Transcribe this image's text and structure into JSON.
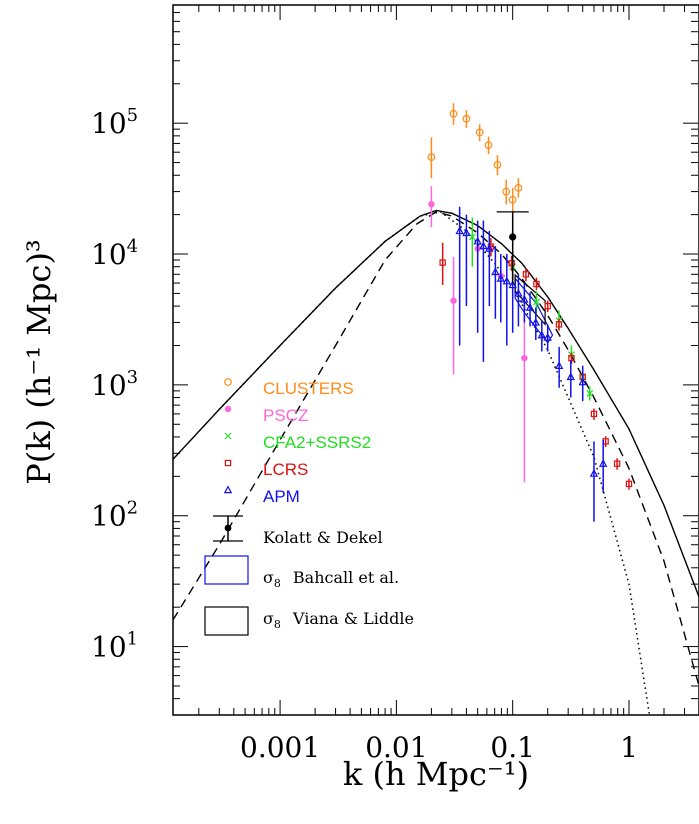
{
  "chart_data": {
    "type": "scatter",
    "xlabel": "k (h Mpc⁻¹)",
    "ylabel": "P(k) (h⁻¹ Mpc)³",
    "xscale": "log",
    "yscale": "log",
    "xlim": [
      0.00012,
      4
    ],
    "ylim": [
      3.0,
      800000
    ],
    "x_ticks": [
      {
        "value": 0.001,
        "label": "0.001"
      },
      {
        "value": 0.01,
        "label": "0.01"
      },
      {
        "value": 0.1,
        "label": "0.1"
      },
      {
        "value": 1,
        "label": "1"
      }
    ],
    "y_ticks": [
      {
        "value": 10,
        "base": "10",
        "exp": "1"
      },
      {
        "value": 100,
        "base": "10",
        "exp": "2"
      },
      {
        "value": 1000,
        "base": "10",
        "exp": "3"
      },
      {
        "value": 10000,
        "base": "10",
        "exp": "4"
      },
      {
        "value": 100000,
        "base": "10",
        "exp": "5"
      }
    ],
    "legend_placement": "left",
    "series": [
      {
        "name": "CLUSTERS",
        "color": "#ff8c1a",
        "marker": "circle",
        "points": [
          {
            "x": 0.02,
            "y": 55000,
            "lo": 38000,
            "hi": 78000
          },
          {
            "x": 0.031,
            "y": 118000,
            "lo": 97000,
            "hi": 142000
          },
          {
            "x": 0.04,
            "y": 108000,
            "lo": 92000,
            "hi": 126000
          },
          {
            "x": 0.052,
            "y": 85000,
            "lo": 73000,
            "hi": 98000
          },
          {
            "x": 0.062,
            "y": 68000,
            "lo": 58000,
            "hi": 79000
          },
          {
            "x": 0.074,
            "y": 48000,
            "lo": 40000,
            "hi": 57000
          },
          {
            "x": 0.088,
            "y": 30000,
            "lo": 24000,
            "hi": 37000
          },
          {
            "x": 0.1,
            "y": 26000,
            "lo": 21000,
            "hi": 32000
          },
          {
            "x": 0.112,
            "y": 32000,
            "lo": 27000,
            "hi": 38000
          }
        ]
      },
      {
        "name": "PSCZ",
        "color": "#ff66dd",
        "marker": "dot",
        "points": [
          {
            "x": 0.02,
            "y": 24000,
            "lo": 16000,
            "hi": 33000
          },
          {
            "x": 0.031,
            "y": 4400,
            "lo": 1200,
            "hi": 9500
          },
          {
            "x": 0.05,
            "y": 11000,
            "lo": 7000,
            "hi": 15500
          },
          {
            "x": 0.079,
            "y": 6800,
            "lo": 4600,
            "hi": 9200
          },
          {
            "x": 0.126,
            "y": 1600,
            "lo": 180,
            "hi": 5200
          }
        ]
      },
      {
        "name": "CFA2+SSRS2",
        "color": "#22dd22",
        "marker": "cross",
        "points": [
          {
            "x": 0.045,
            "y": 13500,
            "lo": 8000,
            "hi": 19000
          },
          {
            "x": 0.1,
            "y": 8000,
            "lo": 6000,
            "hi": 10500
          },
          {
            "x": 0.16,
            "y": 4300,
            "lo": 3500,
            "hi": 5200
          },
          {
            "x": 0.25,
            "y": 3100,
            "lo": 2600,
            "hi": 3700
          },
          {
            "x": 0.32,
            "y": 1700,
            "lo": 1450,
            "hi": 2000
          },
          {
            "x": 0.4,
            "y": 1150,
            "lo": 1000,
            "hi": 1320
          },
          {
            "x": 0.46,
            "y": 860,
            "lo": 760,
            "hi": 970
          }
        ]
      },
      {
        "name": "LCRS",
        "color": "#dd1111",
        "marker": "square",
        "points": [
          {
            "x": 0.025,
            "y": 8600,
            "lo": 5800,
            "hi": 12200
          },
          {
            "x": 0.065,
            "y": 11400,
            "lo": 9600,
            "hi": 13200
          },
          {
            "x": 0.098,
            "y": 8500,
            "lo": 7400,
            "hi": 9700
          },
          {
            "x": 0.13,
            "y": 7000,
            "lo": 6200,
            "hi": 7800
          },
          {
            "x": 0.16,
            "y": 5900,
            "lo": 5300,
            "hi": 6600
          },
          {
            "x": 0.2,
            "y": 4000,
            "lo": 3600,
            "hi": 4400
          },
          {
            "x": 0.25,
            "y": 2900,
            "lo": 2600,
            "hi": 3200
          },
          {
            "x": 0.32,
            "y": 1600,
            "lo": 1450,
            "hi": 1760
          },
          {
            "x": 0.4,
            "y": 1150,
            "lo": 1040,
            "hi": 1260
          },
          {
            "x": 0.5,
            "y": 600,
            "lo": 540,
            "hi": 660
          },
          {
            "x": 0.63,
            "y": 370,
            "lo": 335,
            "hi": 405
          },
          {
            "x": 0.79,
            "y": 250,
            "lo": 225,
            "hi": 275
          },
          {
            "x": 1.0,
            "y": 175,
            "lo": 158,
            "hi": 192
          }
        ]
      },
      {
        "name": "APM",
        "color": "#1111ee",
        "marker": "triangle",
        "points": [
          {
            "x": 0.035,
            "y": 15000,
            "lo": 2000,
            "hi": 23000
          },
          {
            "x": 0.04,
            "y": 14500,
            "lo": 4000,
            "hi": 20000
          },
          {
            "x": 0.05,
            "y": 12500,
            "lo": 2500,
            "hi": 18000
          },
          {
            "x": 0.056,
            "y": 11500,
            "lo": 1500,
            "hi": 18000
          },
          {
            "x": 0.063,
            "y": 11000,
            "lo": 4000,
            "hi": 15000
          },
          {
            "x": 0.071,
            "y": 7300,
            "lo": 3200,
            "hi": 11500
          },
          {
            "x": 0.079,
            "y": 6500,
            "lo": 3000,
            "hi": 10000
          },
          {
            "x": 0.089,
            "y": 6200,
            "lo": 2000,
            "hi": 10000
          },
          {
            "x": 0.1,
            "y": 5800,
            "lo": 2500,
            "hi": 8000
          },
          {
            "x": 0.112,
            "y": 5000,
            "lo": 2800,
            "hi": 7000
          },
          {
            "x": 0.126,
            "y": 4500,
            "lo": 3000,
            "hi": 6000
          },
          {
            "x": 0.141,
            "y": 3900,
            "lo": 2800,
            "hi": 5100
          },
          {
            "x": 0.158,
            "y": 3000,
            "lo": 2200,
            "hi": 3900
          },
          {
            "x": 0.178,
            "y": 2400,
            "lo": 1800,
            "hi": 3100
          },
          {
            "x": 0.2,
            "y": 2300,
            "lo": 1800,
            "hi": 2900
          },
          {
            "x": 0.251,
            "y": 1400,
            "lo": 950,
            "hi": 1950
          },
          {
            "x": 0.316,
            "y": 1150,
            "lo": 800,
            "hi": 1550
          },
          {
            "x": 0.4,
            "y": 1050,
            "lo": 750,
            "hi": 1400
          },
          {
            "x": 0.5,
            "y": 210,
            "lo": 90,
            "hi": 370
          },
          {
            "x": 0.6,
            "y": 250,
            "lo": 150,
            "hi": 380
          }
        ]
      },
      {
        "name": "Kolatt & Dekel",
        "color": "#000000",
        "marker": "dot",
        "points": [
          {
            "x": 0.1,
            "y": 13500,
            "lo": 6000,
            "hi": 21000
          }
        ]
      }
    ],
    "bands": [
      {
        "name": "σ8 Bahcall et al.",
        "color": "#1111ee",
        "polygon": [
          [
            0.105,
            6500
          ],
          [
            0.16,
            4200
          ],
          [
            0.22,
            2400
          ],
          [
            0.2,
            2100
          ],
          [
            0.125,
            3600
          ],
          [
            0.105,
            4600
          ]
        ]
      },
      {
        "name": "σ8 Viana & Liddle",
        "color": "#000000",
        "polygon": [
          [
            0.105,
            6900
          ],
          [
            0.19,
            4400
          ],
          [
            0.19,
            2900
          ],
          [
            0.105,
            5200
          ]
        ]
      }
    ],
    "curves": [
      {
        "style": "solid",
        "points": [
          [
            0.00012,
            270
          ],
          [
            0.0003,
            650
          ],
          [
            0.001,
            2000
          ],
          [
            0.003,
            5500
          ],
          [
            0.008,
            12500
          ],
          [
            0.016,
            19500
          ],
          [
            0.022,
            21500
          ],
          [
            0.03,
            20500
          ],
          [
            0.05,
            16500
          ],
          [
            0.08,
            12000
          ],
          [
            0.12,
            8500
          ],
          [
            0.2,
            4700
          ],
          [
            0.3,
            2700
          ],
          [
            0.5,
            1300
          ],
          [
            1.0,
            460
          ],
          [
            2.0,
            120
          ],
          [
            4.0,
            24
          ]
        ]
      },
      {
        "style": "dashed",
        "points": [
          [
            0.00012,
            16
          ],
          [
            0.0003,
            60
          ],
          [
            0.001,
            380
          ],
          [
            0.003,
            2000
          ],
          [
            0.008,
            9000
          ],
          [
            0.015,
            17000
          ],
          [
            0.022,
            21000
          ],
          [
            0.03,
            19500
          ],
          [
            0.05,
            14500
          ],
          [
            0.08,
            10000
          ],
          [
            0.12,
            6500
          ],
          [
            0.2,
            3400
          ],
          [
            0.3,
            1850
          ],
          [
            0.5,
            800
          ],
          [
            1.0,
            230
          ],
          [
            2.0,
            45
          ],
          [
            4.0,
            5
          ]
        ]
      },
      {
        "style": "dotted",
        "points": [
          [
            0.0003,
            650
          ],
          [
            0.001,
            2000
          ],
          [
            0.003,
            5500
          ],
          [
            0.008,
            12500
          ],
          [
            0.016,
            19500
          ],
          [
            0.024,
            21000
          ],
          [
            0.04,
            15000
          ],
          [
            0.07,
            8500
          ],
          [
            0.1,
            5500
          ],
          [
            0.2,
            1850
          ],
          [
            0.5,
            280
          ],
          [
            1.0,
            30
          ],
          [
            1.5,
            3.0
          ]
        ]
      }
    ],
    "legend": {
      "entries": [
        {
          "label": "CLUSTERS",
          "color": "#ff8c1a",
          "marker": "circle"
        },
        {
          "label": "PSCZ",
          "color": "#ff66dd",
          "marker": "dot"
        },
        {
          "label": "CFA2+SSRS2",
          "color": "#22dd22",
          "marker": "cross"
        },
        {
          "label": "LCRS",
          "color": "#dd1111",
          "marker": "square"
        },
        {
          "label": "APM",
          "color": "#1111ee",
          "marker": "triangle"
        }
      ],
      "kolatt": {
        "label": "Kolatt & Dekel"
      },
      "bahcall": {
        "sigma": "σ",
        "sub": "8",
        "label": "Bahcall et al.",
        "color": "#1111ee"
      },
      "viana": {
        "sigma": "σ",
        "sub": "8",
        "label": "Viana & Liddle",
        "color": "#000000"
      }
    }
  }
}
